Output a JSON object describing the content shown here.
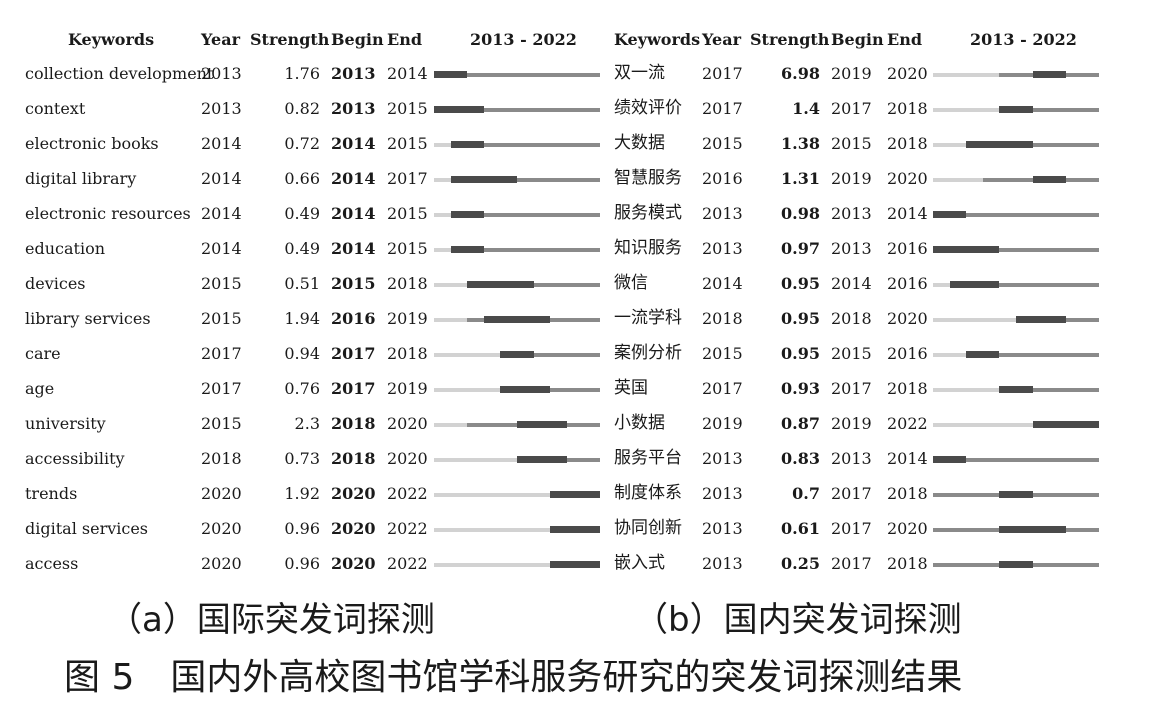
{
  "panels": {
    "a": {
      "headers": {
        "keywords": "Keywords",
        "year": "Year",
        "strength": "Strength",
        "begin": "Begin",
        "end": "End",
        "range": "2013 - 2022"
      },
      "rows": [
        {
          "keyword": "collection development",
          "year": "2013",
          "strength": "1.76",
          "begin": "2013",
          "end": "2014"
        },
        {
          "keyword": "context",
          "year": "2013",
          "strength": "0.82",
          "begin": "2013",
          "end": "2015"
        },
        {
          "keyword": "electronic books",
          "year": "2014",
          "strength": "0.72",
          "begin": "2014",
          "end": "2015"
        },
        {
          "keyword": "digital library",
          "year": "2014",
          "strength": "0.66",
          "begin": "2014",
          "end": "2017"
        },
        {
          "keyword": "electronic resources",
          "year": "2014",
          "strength": "0.49",
          "begin": "2014",
          "end": "2015"
        },
        {
          "keyword": "education",
          "year": "2014",
          "strength": "0.49",
          "begin": "2014",
          "end": "2015"
        },
        {
          "keyword": "devices",
          "year": "2015",
          "strength": "0.51",
          "begin": "2015",
          "end": "2018"
        },
        {
          "keyword": "library services",
          "year": "2015",
          "strength": "1.94",
          "begin": "2016",
          "end": "2019"
        },
        {
          "keyword": "care",
          "year": "2017",
          "strength": "0.94",
          "begin": "2017",
          "end": "2018"
        },
        {
          "keyword": "age",
          "year": "2017",
          "strength": "0.76",
          "begin": "2017",
          "end": "2019"
        },
        {
          "keyword": "university",
          "year": "2015",
          "strength": "2.3",
          "begin": "2018",
          "end": "2020"
        },
        {
          "keyword": "accessibility",
          "year": "2018",
          "strength": "0.73",
          "begin": "2018",
          "end": "2020"
        },
        {
          "keyword": "trends",
          "year": "2020",
          "strength": "1.92",
          "begin": "2020",
          "end": "2022"
        },
        {
          "keyword": "digital services",
          "year": "2020",
          "strength": "0.96",
          "begin": "2020",
          "end": "2022"
        },
        {
          "keyword": "access",
          "year": "2020",
          "strength": "0.96",
          "begin": "2020",
          "end": "2022"
        }
      ],
      "caption": "（a）国际突发词探测"
    },
    "b": {
      "headers": {
        "keywords": "Keywords",
        "year": "Year",
        "strength": "Strength",
        "begin": "Begin",
        "end": "End",
        "range": "2013 - 2022"
      },
      "rows": [
        {
          "keyword": "双一流",
          "year": "2017",
          "strength": "6.98",
          "begin": "2019",
          "end": "2020"
        },
        {
          "keyword": "绩效评价",
          "year": "2017",
          "strength": "1.4",
          "begin": "2017",
          "end": "2018"
        },
        {
          "keyword": "大数据",
          "year": "2015",
          "strength": "1.38",
          "begin": "2015",
          "end": "2018"
        },
        {
          "keyword": "智慧服务",
          "year": "2016",
          "strength": "1.31",
          "begin": "2019",
          "end": "2020"
        },
        {
          "keyword": "服务模式",
          "year": "2013",
          "strength": "0.98",
          "begin": "2013",
          "end": "2014"
        },
        {
          "keyword": "知识服务",
          "year": "2013",
          "strength": "0.97",
          "begin": "2013",
          "end": "2016"
        },
        {
          "keyword": "微信",
          "year": "2014",
          "strength": "0.95",
          "begin": "2014",
          "end": "2016"
        },
        {
          "keyword": "一流学科",
          "year": "2018",
          "strength": "0.95",
          "begin": "2018",
          "end": "2020"
        },
        {
          "keyword": "案例分析",
          "year": "2015",
          "strength": "0.95",
          "begin": "2015",
          "end": "2016"
        },
        {
          "keyword": "英国",
          "year": "2017",
          "strength": "0.93",
          "begin": "2017",
          "end": "2018"
        },
        {
          "keyword": "小数据",
          "year": "2019",
          "strength": "0.87",
          "begin": "2019",
          "end": "2022"
        },
        {
          "keyword": "服务平台",
          "year": "2013",
          "strength": "0.83",
          "begin": "2013",
          "end": "2014"
        },
        {
          "keyword": "制度体系",
          "year": "2013",
          "strength": "0.7",
          "begin": "2017",
          "end": "2018"
        },
        {
          "keyword": "协同创新",
          "year": "2013",
          "strength": "0.61",
          "begin": "2017",
          "end": "2020"
        },
        {
          "keyword": "嵌入式",
          "year": "2013",
          "strength": "0.25",
          "begin": "2017",
          "end": "2018"
        }
      ],
      "caption": "（b）国内突发词探测"
    }
  },
  "timeline": {
    "start_year": 2013,
    "end_year": 2022,
    "colors": {
      "before": "#d2d2d2",
      "active": "#8a8a8a",
      "burst": "#4a4a4a"
    }
  },
  "figure_caption": "图 5　国内外高校图书馆学科服务研究的突发词探测结果"
}
